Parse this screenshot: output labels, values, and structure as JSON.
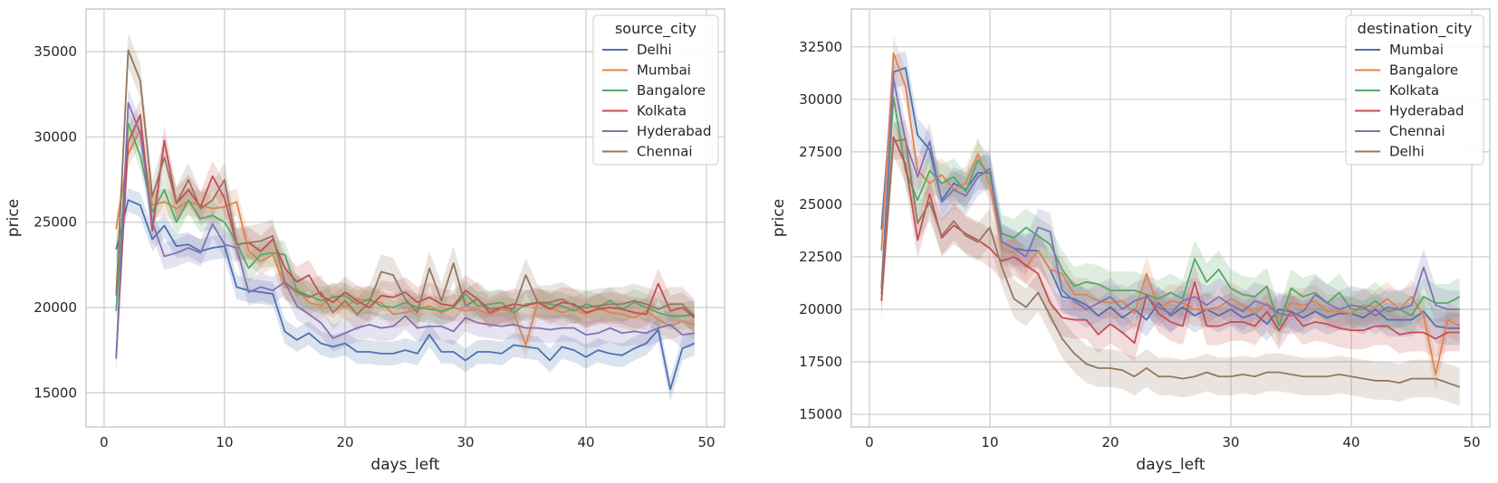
{
  "chart_data": [
    {
      "type": "line",
      "xlabel": "days_left",
      "ylabel": "price",
      "xlim": [
        -1.5,
        51.5
      ],
      "ylim": [
        13000,
        37500
      ],
      "xticks": [
        0,
        10,
        20,
        30,
        40,
        50
      ],
      "yticks": [
        15000,
        20000,
        25000,
        30000,
        35000
      ],
      "grid": true,
      "legend": {
        "title": "source_city",
        "placement": "top-right"
      },
      "x": [
        1,
        2,
        3,
        4,
        5,
        6,
        7,
        8,
        9,
        10,
        11,
        12,
        13,
        14,
        15,
        16,
        17,
        18,
        19,
        20,
        21,
        22,
        23,
        24,
        25,
        26,
        27,
        28,
        29,
        30,
        31,
        32,
        33,
        34,
        35,
        36,
        37,
        38,
        39,
        40,
        41,
        42,
        43,
        44,
        45,
        46,
        47,
        48,
        49
      ],
      "series": [
        {
          "name": "Delhi",
          "color": "#4c72b0",
          "band": 700,
          "values": [
            23400,
            26300,
            26000,
            24000,
            24800,
            23600,
            23700,
            23300,
            23500,
            23600,
            21200,
            21000,
            20900,
            20800,
            18600,
            18100,
            18500,
            17900,
            17700,
            17900,
            17400,
            17400,
            17300,
            17300,
            17500,
            17300,
            18400,
            17400,
            17400,
            16900,
            17400,
            17400,
            17300,
            17800,
            17700,
            17600,
            16900,
            17700,
            17500,
            17100,
            17500,
            17300,
            17200,
            17600,
            17900,
            18700,
            15200,
            17600,
            17900
          ]
        },
        {
          "name": "Mumbai",
          "color": "#dd8452",
          "band": 800,
          "values": [
            24600,
            29000,
            30400,
            26000,
            26200,
            25800,
            26200,
            26000,
            25800,
            25900,
            26200,
            23300,
            22700,
            23100,
            21200,
            21100,
            20300,
            20100,
            20700,
            20000,
            20500,
            20400,
            20300,
            19600,
            19700,
            19900,
            20100,
            19700,
            20000,
            19800,
            19900,
            19600,
            19900,
            19700,
            17800,
            20300,
            20000,
            19700,
            19900,
            19600,
            20000,
            19700,
            19600,
            19400,
            19800,
            19300,
            18900,
            19200,
            19000
          ]
        },
        {
          "name": "Bangalore",
          "color": "#55a868",
          "band": 800,
          "values": [
            19800,
            30800,
            28900,
            25600,
            26900,
            25000,
            26300,
            25200,
            25400,
            25000,
            23800,
            22300,
            23100,
            23200,
            23100,
            21000,
            20700,
            20400,
            20600,
            20700,
            20200,
            20500,
            20100,
            20000,
            20300,
            20000,
            19900,
            19800,
            20000,
            20800,
            20100,
            20200,
            20300,
            19700,
            20200,
            20300,
            20200,
            20100,
            19800,
            20200,
            20000,
            20400,
            19900,
            20300,
            20000,
            19700,
            19500,
            19500,
            19600
          ]
        },
        {
          "name": "Kolkata",
          "color": "#c44e52",
          "band": 900,
          "values": [
            17100,
            29700,
            31300,
            24500,
            29800,
            26100,
            26900,
            25900,
            27700,
            26400,
            23700,
            23800,
            23300,
            24000,
            22300,
            21500,
            21900,
            20700,
            20300,
            20900,
            20400,
            20000,
            20700,
            20600,
            20900,
            20300,
            20600,
            20200,
            20100,
            21000,
            20500,
            19700,
            20000,
            20200,
            20100,
            20300,
            19900,
            20300,
            20200,
            19700,
            19900,
            20000,
            19900,
            19700,
            19600,
            21400,
            19800,
            20000,
            19400
          ]
        },
        {
          "name": "Hyderabad",
          "color": "#8172b2",
          "band": 800,
          "values": [
            17000,
            32000,
            30200,
            25000,
            23000,
            23200,
            23500,
            23200,
            24900,
            23700,
            23500,
            20900,
            21200,
            21000,
            21500,
            20100,
            19600,
            19100,
            18200,
            18500,
            18800,
            19000,
            18800,
            18900,
            19500,
            18800,
            18900,
            18900,
            18600,
            19400,
            19100,
            19000,
            18900,
            19000,
            18800,
            18800,
            18700,
            18800,
            18800,
            18400,
            18500,
            18800,
            18500,
            18600,
            18500,
            18800,
            19000,
            18400,
            18500
          ]
        },
        {
          "name": "Chennai",
          "color": "#937860",
          "band": 1000,
          "values": [
            20700,
            35100,
            33300,
            26500,
            28800,
            26100,
            27500,
            25800,
            26300,
            27500,
            23700,
            23800,
            23900,
            24200,
            21500,
            20900,
            20600,
            20900,
            19700,
            20400,
            19600,
            20300,
            22100,
            21900,
            20500,
            19700,
            22300,
            20400,
            22600,
            20100,
            20500,
            19900,
            20000,
            19900,
            21900,
            20300,
            20300,
            20500,
            20100,
            20000,
            20100,
            20200,
            20200,
            20400,
            20200,
            19900,
            20200,
            20200,
            19500
          ]
        }
      ]
    },
    {
      "type": "line",
      "xlabel": "days_left",
      "ylabel": "price",
      "xlim": [
        -1.5,
        51.5
      ],
      "ylim": [
        14400,
        34300
      ],
      "xticks": [
        0,
        10,
        20,
        30,
        40,
        50
      ],
      "yticks": [
        15000,
        17500,
        20000,
        22500,
        25000,
        27500,
        30000,
        32500
      ],
      "grid": true,
      "legend": {
        "title": "destination_city",
        "placement": "top-right"
      },
      "x": [
        1,
        2,
        3,
        4,
        5,
        6,
        7,
        8,
        9,
        10,
        11,
        12,
        13,
        14,
        15,
        16,
        17,
        18,
        19,
        20,
        21,
        22,
        23,
        24,
        25,
        26,
        27,
        28,
        29,
        30,
        31,
        32,
        33,
        34,
        35,
        36,
        37,
        38,
        39,
        40,
        41,
        42,
        43,
        44,
        45,
        46,
        47,
        48,
        49
      ],
      "series": [
        {
          "name": "Mumbai",
          "color": "#4c72b0",
          "band": 800,
          "values": [
            23800,
            31300,
            31500,
            28300,
            27600,
            25200,
            26000,
            25700,
            26500,
            26500,
            23200,
            22900,
            22800,
            22800,
            21900,
            20600,
            20500,
            20200,
            19700,
            20100,
            19600,
            20000,
            19500,
            20300,
            19700,
            20100,
            19700,
            20000,
            19700,
            20000,
            19600,
            19800,
            19300,
            20000,
            19900,
            19600,
            19900,
            19600,
            19800,
            19800,
            19600,
            20000,
            19500,
            19500,
            19500,
            19900,
            19200,
            19100,
            19100
          ]
        },
        {
          "name": "Bangalore",
          "color": "#dd8452",
          "band": 800,
          "values": [
            22800,
            32200,
            30600,
            26600,
            26000,
            26400,
            25700,
            26000,
            27400,
            25900,
            22900,
            22700,
            22000,
            22800,
            21900,
            21700,
            20700,
            20700,
            20400,
            20300,
            20400,
            19800,
            21700,
            20000,
            20400,
            20300,
            20000,
            20000,
            20100,
            20500,
            20200,
            19800,
            20300,
            19600,
            20300,
            20200,
            20400,
            19900,
            19900,
            19800,
            20200,
            20100,
            20500,
            20000,
            20600,
            19700,
            16900,
            19500,
            19200
          ]
        },
        {
          "name": "Kolkata",
          "color": "#55a868",
          "band": 900,
          "values": [
            20700,
            30100,
            26600,
            25200,
            26600,
            26000,
            26300,
            25600,
            27100,
            26400,
            23600,
            23400,
            23900,
            23500,
            23100,
            21900,
            21100,
            21300,
            21200,
            20900,
            20900,
            20900,
            20700,
            20500,
            20800,
            20500,
            22400,
            21300,
            21900,
            21000,
            20700,
            20600,
            21100,
            19200,
            21000,
            20600,
            20800,
            20300,
            20800,
            20000,
            20000,
            20400,
            19900,
            20000,
            19700,
            20600,
            20300,
            20300,
            20600
          ]
        },
        {
          "name": "Hyderabad",
          "color": "#c44e52",
          "band": 900,
          "values": [
            20400,
            28200,
            26900,
            23300,
            25500,
            23400,
            24000,
            23600,
            23300,
            22900,
            22300,
            22500,
            22100,
            21700,
            20300,
            19600,
            19500,
            19500,
            18800,
            19300,
            18900,
            18400,
            20700,
            19800,
            19400,
            19200,
            21300,
            19200,
            19200,
            19400,
            19400,
            19200,
            19900,
            19000,
            19900,
            19200,
            19400,
            19300,
            19100,
            19000,
            19000,
            19200,
            19200,
            18800,
            18900,
            18900,
            18600,
            18900,
            18900
          ]
        },
        {
          "name": "Chennai",
          "color": "#8172b2",
          "band": 900,
          "values": [
            21000,
            31000,
            28000,
            26300,
            28000,
            25100,
            25700,
            25400,
            26300,
            26700,
            23200,
            22900,
            22500,
            23900,
            23700,
            20900,
            20400,
            20000,
            20300,
            20600,
            20000,
            20400,
            20600,
            20100,
            19800,
            20400,
            20600,
            20200,
            20600,
            20200,
            19900,
            20400,
            20200,
            19800,
            19700,
            19900,
            20700,
            20300,
            20000,
            20200,
            20100,
            19700,
            20100,
            20000,
            20200,
            22000,
            20200,
            20000,
            20000
          ]
        },
        {
          "name": "Delhi",
          "color": "#937860",
          "band": 900,
          "values": [
            21100,
            28000,
            28100,
            24100,
            25100,
            23500,
            24200,
            23500,
            23200,
            23900,
            22000,
            20500,
            20100,
            20800,
            19700,
            18600,
            17900,
            17400,
            17200,
            17200,
            17100,
            16800,
            17200,
            16800,
            16800,
            16700,
            16800,
            17000,
            16800,
            16800,
            16900,
            16800,
            17000,
            17000,
            16900,
            16800,
            16800,
            16800,
            16900,
            16800,
            16700,
            16600,
            16600,
            16500,
            16700,
            16700,
            16700,
            16500,
            16300
          ]
        }
      ]
    }
  ]
}
